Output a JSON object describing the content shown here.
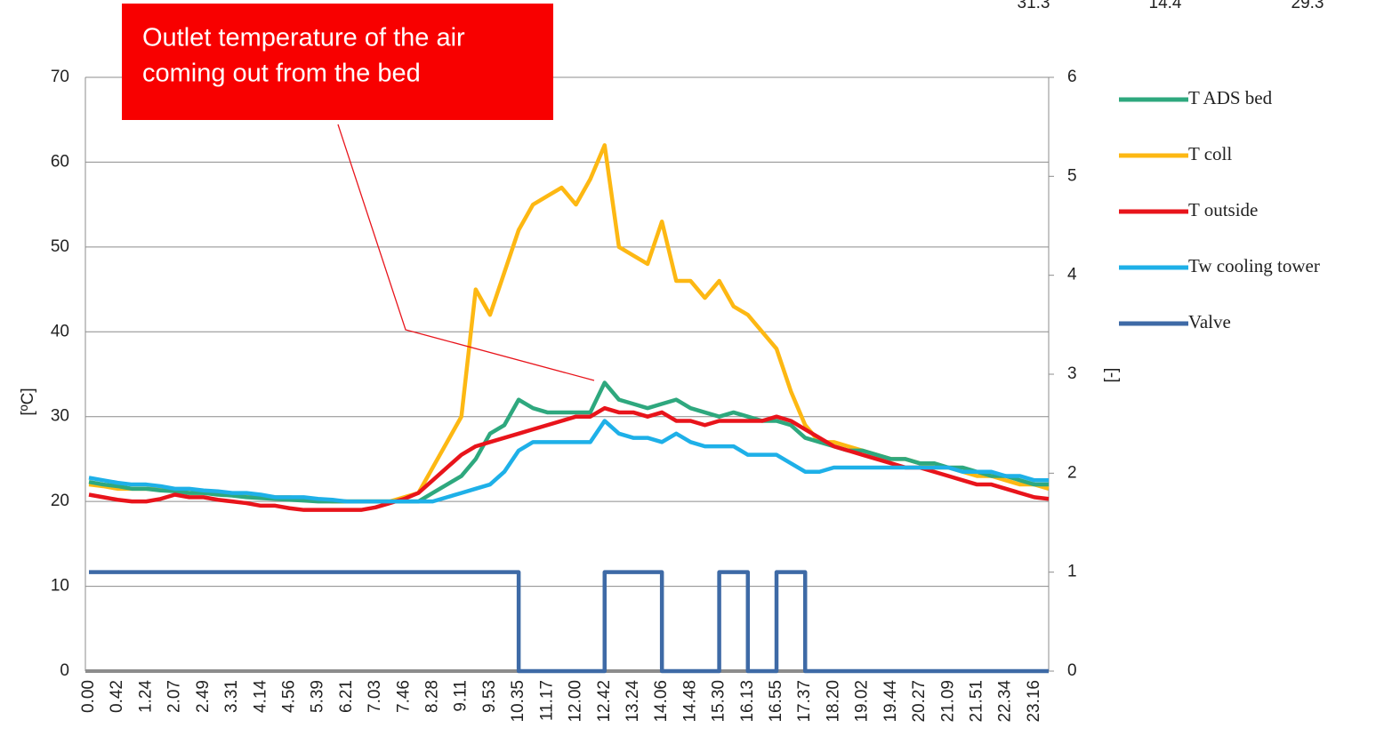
{
  "chart_data": {
    "type": "line",
    "top_values": [
      "31.3",
      "14.4",
      "29.3"
    ],
    "annotation": [
      "Outlet temperature of the air",
      "coming out from the bed"
    ],
    "ylabel": "[ºC]",
    "y2label": "[-]",
    "ylim": [
      0,
      70
    ],
    "yticks": [
      0,
      10,
      20,
      30,
      40,
      50,
      60,
      70
    ],
    "y2lim": [
      0,
      6
    ],
    "y2ticks": [
      0,
      1,
      2,
      3,
      4,
      5,
      6
    ],
    "grid": true,
    "legend": "right",
    "categories": [
      "0.00",
      null,
      "0.42",
      null,
      "1.24",
      null,
      "2.07",
      null,
      "2.49",
      null,
      "3.31",
      null,
      "4.14",
      null,
      "4.56",
      null,
      "5.39",
      null,
      "6.21",
      null,
      "7.03",
      null,
      "7.46",
      null,
      "8.28",
      null,
      "9.11",
      null,
      "9.53",
      null,
      "10.35",
      null,
      "11.17",
      null,
      "12.00",
      null,
      "12.42",
      null,
      "13.24",
      null,
      "14.06",
      null,
      "14.48",
      null,
      "15.30",
      null,
      "16.13",
      null,
      "16.55",
      null,
      "17.37",
      null,
      "18.20",
      null,
      "19.02",
      null,
      "19.44",
      null,
      "20.27",
      null,
      "21.09",
      null,
      "21.51",
      null,
      "22.34",
      null,
      "23.16",
      null
    ],
    "series": [
      {
        "name": "T ADS bed",
        "color": "#2ea87e",
        "values": [
          22.3,
          22,
          21.8,
          21.5,
          21.5,
          21.3,
          21.2,
          21,
          21,
          20.8,
          20.7,
          20.5,
          20.4,
          20.3,
          20.2,
          20.1,
          20,
          20,
          20,
          20,
          20,
          20,
          20,
          20,
          21,
          22,
          23,
          25,
          28,
          29,
          32,
          31,
          30.5,
          30.5,
          30.5,
          30.5,
          34,
          32,
          31.5,
          31,
          31.5,
          32,
          31,
          30.5,
          30,
          30.5,
          30,
          29.5,
          29.5,
          29,
          27.5,
          27,
          26.5,
          26,
          26,
          25.5,
          25,
          25,
          24.5,
          24.5,
          24,
          24,
          23.5,
          23,
          23,
          22.5,
          22,
          22
        ]
      },
      {
        "name": "T coll",
        "color": "#fdb813",
        "values": [
          22,
          21.8,
          21.5,
          21.5,
          21.5,
          21.5,
          21.3,
          21,
          21,
          21,
          20.8,
          20.8,
          20.7,
          20.5,
          20.5,
          20.3,
          20.2,
          20,
          20,
          20,
          20,
          20,
          20.5,
          21,
          24,
          27,
          30,
          45,
          42,
          47,
          52,
          55,
          56,
          57,
          55,
          58,
          62,
          50,
          49,
          48,
          53,
          46,
          46,
          44,
          46,
          43,
          42,
          40,
          38,
          33,
          29,
          27,
          27,
          26.5,
          26,
          25.5,
          25,
          25,
          24.5,
          24,
          24,
          23.5,
          23,
          23,
          22.5,
          22,
          22,
          21.5
        ]
      },
      {
        "name": "T outside",
        "color": "#e8141b",
        "values": [
          20.8,
          20.5,
          20.2,
          20,
          20,
          20.3,
          20.8,
          20.5,
          20.5,
          20.2,
          20,
          19.8,
          19.5,
          19.5,
          19.2,
          19,
          19,
          19,
          19,
          19,
          19.3,
          19.8,
          20.3,
          21,
          22.5,
          24,
          25.5,
          26.5,
          27,
          27.5,
          28,
          28.5,
          29,
          29.5,
          30,
          30,
          31,
          30.5,
          30.5,
          30,
          30.5,
          29.5,
          29.5,
          29,
          29.5,
          29.5,
          29.5,
          29.5,
          30,
          29.5,
          28.5,
          27.5,
          26.5,
          26,
          25.5,
          25,
          24.5,
          24,
          24,
          23.5,
          23,
          22.5,
          22,
          22,
          21.5,
          21,
          20.5,
          20.3
        ]
      },
      {
        "name": "Tw cooling tower",
        "color": "#1eb0e8",
        "values": [
          22.8,
          22.5,
          22.2,
          22,
          22,
          21.8,
          21.5,
          21.5,
          21.3,
          21.2,
          21,
          21,
          20.8,
          20.5,
          20.5,
          20.5,
          20.3,
          20.2,
          20,
          20,
          20,
          20,
          20,
          20,
          20,
          20.5,
          21,
          21.5,
          22,
          23.5,
          26,
          27,
          27,
          27,
          27,
          27,
          29.5,
          28,
          27.5,
          27.5,
          27,
          28,
          27,
          26.5,
          26.5,
          26.5,
          25.5,
          25.5,
          25.5,
          24.5,
          23.5,
          23.5,
          24,
          24,
          24,
          24,
          24,
          24,
          24,
          24,
          24,
          23.5,
          23.5,
          23.5,
          23,
          23,
          22.5,
          22.5
        ]
      },
      {
        "name": "Valve",
        "color": "#3e6aa6",
        "axis": "y2",
        "step": true,
        "values": [
          1,
          1,
          1,
          1,
          1,
          1,
          1,
          1,
          1,
          1,
          1,
          1,
          1,
          1,
          1,
          1,
          1,
          1,
          1,
          1,
          1,
          1,
          1,
          1,
          1,
          1,
          1,
          1,
          1,
          1,
          0,
          0,
          0,
          0,
          0,
          0,
          1,
          1,
          1,
          1,
          0,
          0,
          0,
          0,
          1,
          1,
          0,
          0,
          1,
          1,
          0,
          0,
          0,
          0,
          0,
          0,
          0,
          0,
          0,
          0,
          0,
          0,
          0,
          0,
          0,
          0,
          0,
          0
        ]
      }
    ]
  }
}
